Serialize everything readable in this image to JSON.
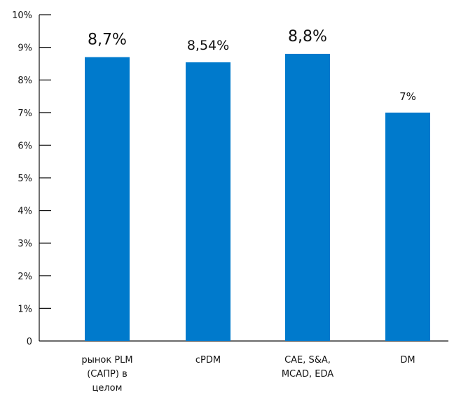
{
  "chart_data": {
    "type": "bar",
    "categories": [
      [
        "рынок PLM",
        "(САПР) в",
        "целом"
      ],
      [
        "cPDM"
      ],
      [
        "CAE, S&A,",
        "MCAD, EDA"
      ],
      [
        "DM"
      ]
    ],
    "values": [
      8.7,
      8.54,
      8.8,
      7.0
    ],
    "data_labels": [
      "8,7%",
      "8,54%",
      "8,8%",
      "7%"
    ],
    "y_ticks": [
      "0",
      "1%",
      "2%",
      "3%",
      "4%",
      "5%",
      "6%",
      "7%",
      "8%",
      "9%",
      "10%"
    ],
    "ylim": [
      0,
      10
    ],
    "title": "",
    "xlabel": "",
    "ylabel": "",
    "grid": false,
    "bar_color": "#007acc"
  }
}
